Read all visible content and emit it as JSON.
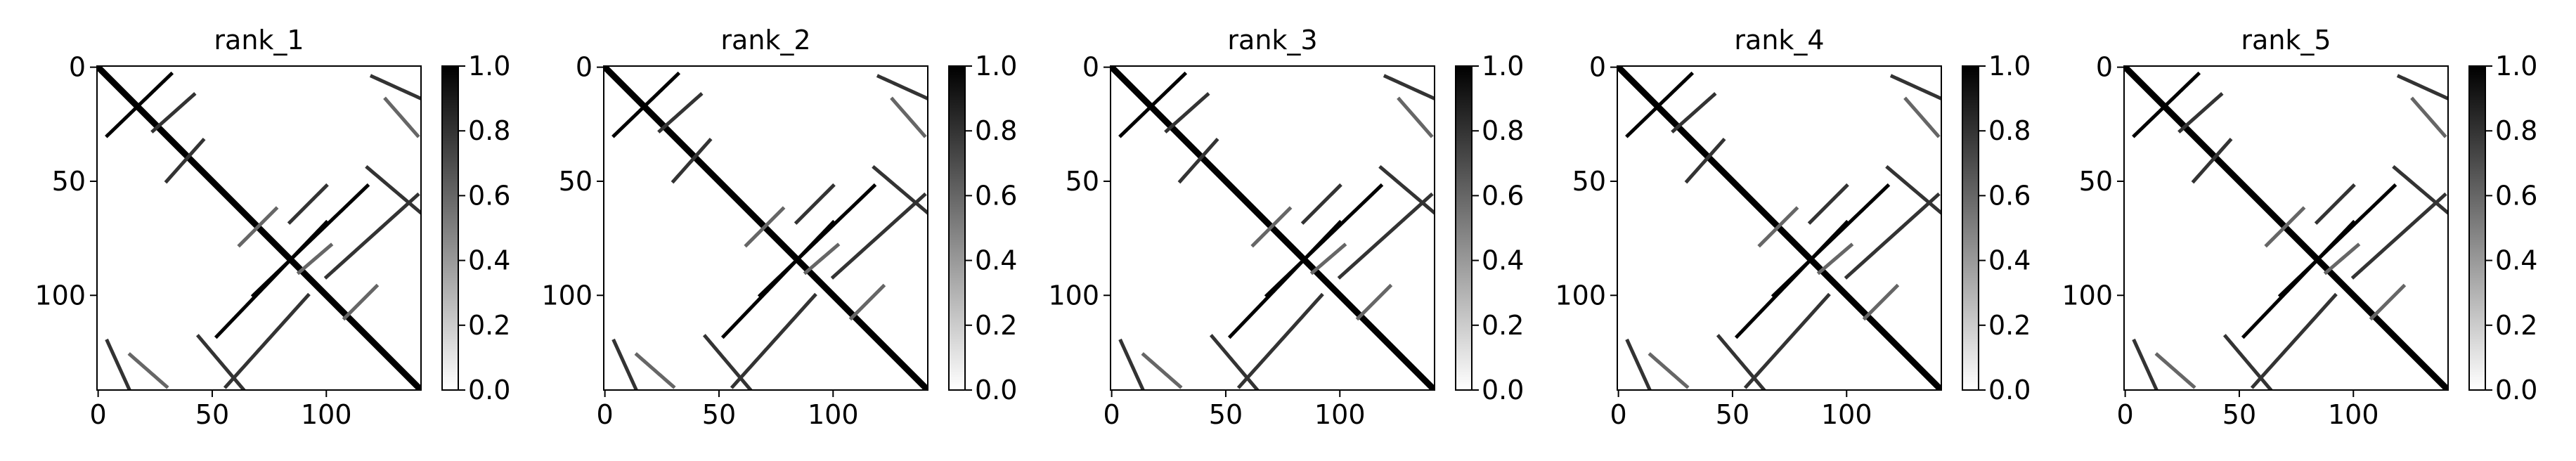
{
  "colors": {
    "background": "#ffffff",
    "axis": "#000000",
    "low": "#ffffff",
    "high": "#000000"
  },
  "chart_data": [
    {
      "type": "heatmap",
      "title": "rank_1",
      "matrix_size": 142,
      "value_range": [
        0.0,
        1.0
      ],
      "colormap": "Greys",
      "x_ticks": [
        0,
        50,
        100
      ],
      "y_ticks": [
        0,
        50,
        100
      ],
      "x_tick_labels": [
        "0",
        "50",
        "100"
      ],
      "y_tick_labels": [
        "0",
        "50",
        "100"
      ],
      "colorbar_ticks": [
        0.0,
        0.2,
        0.4,
        0.6,
        0.8,
        1.0
      ],
      "colorbar_tick_labels": [
        "0.0",
        "0.2",
        "0.4",
        "0.6",
        "0.8",
        "1.0"
      ],
      "contact_segments": [
        {
          "i1": 0,
          "j1": 0,
          "i2": 141,
          "j2": 141,
          "value": 1.0
        },
        {
          "i1": 3,
          "j1": 32,
          "i2": 30,
          "j2": 4,
          "value": 1.0
        },
        {
          "i1": 12,
          "j1": 42,
          "i2": 28,
          "j2": 24,
          "value": 0.8
        },
        {
          "i1": 32,
          "j1": 46,
          "i2": 50,
          "j2": 30,
          "value": 0.8
        },
        {
          "i1": 44,
          "j1": 118,
          "i2": 66,
          "j2": 144,
          "value": 0.8
        },
        {
          "i1": 52,
          "j1": 118,
          "i2": 100,
          "j2": 68,
          "value": 1.0
        },
        {
          "i1": 52,
          "j1": 100,
          "i2": 68,
          "j2": 84,
          "value": 0.8
        },
        {
          "i1": 56,
          "j1": 140,
          "i2": 92,
          "j2": 100,
          "value": 0.8
        },
        {
          "i1": 62,
          "j1": 78,
          "i2": 78,
          "j2": 62,
          "value": 0.6
        },
        {
          "i1": 78,
          "j1": 102,
          "i2": 90,
          "j2": 88,
          "value": 0.6
        },
        {
          "i1": 96,
          "j1": 122,
          "i2": 110,
          "j2": 108,
          "value": 0.6
        },
        {
          "i1": 118,
          "j1": 44,
          "i2": 144,
          "j2": 66,
          "value": 0.8
        },
        {
          "i1": 118,
          "j1": 52,
          "i2": 68,
          "j2": 100,
          "value": 1.0
        },
        {
          "i1": 140,
          "j1": 56,
          "i2": 100,
          "j2": 92,
          "value": 0.8
        },
        {
          "i1": 120,
          "j1": 4,
          "i2": 142,
          "j2": 14,
          "value": 0.8
        },
        {
          "i1": 126,
          "j1": 14,
          "i2": 140,
          "j2": 30,
          "value": 0.6
        },
        {
          "i1": 4,
          "j1": 120,
          "i2": 14,
          "j2": 142,
          "value": 0.8
        },
        {
          "i1": 14,
          "j1": 126,
          "i2": 30,
          "j2": 140,
          "value": 0.6
        }
      ]
    },
    {
      "type": "heatmap",
      "title": "rank_2",
      "matrix_size": 142,
      "value_range": [
        0.0,
        1.0
      ],
      "colormap": "Greys",
      "x_ticks": [
        0,
        50,
        100
      ],
      "y_ticks": [
        0,
        50,
        100
      ],
      "x_tick_labels": [
        "0",
        "50",
        "100"
      ],
      "y_tick_labels": [
        "0",
        "50",
        "100"
      ],
      "colorbar_ticks": [
        0.0,
        0.2,
        0.4,
        0.6,
        0.8,
        1.0
      ],
      "colorbar_tick_labels": [
        "0.0",
        "0.2",
        "0.4",
        "0.6",
        "0.8",
        "1.0"
      ],
      "contact_segments": [
        {
          "i1": 0,
          "j1": 0,
          "i2": 141,
          "j2": 141,
          "value": 1.0
        },
        {
          "i1": 3,
          "j1": 32,
          "i2": 30,
          "j2": 4,
          "value": 1.0
        },
        {
          "i1": 12,
          "j1": 42,
          "i2": 28,
          "j2": 24,
          "value": 0.8
        },
        {
          "i1": 32,
          "j1": 46,
          "i2": 50,
          "j2": 30,
          "value": 0.8
        },
        {
          "i1": 44,
          "j1": 118,
          "i2": 66,
          "j2": 144,
          "value": 0.8
        },
        {
          "i1": 52,
          "j1": 118,
          "i2": 100,
          "j2": 68,
          "value": 1.0
        },
        {
          "i1": 52,
          "j1": 100,
          "i2": 68,
          "j2": 84,
          "value": 0.8
        },
        {
          "i1": 56,
          "j1": 140,
          "i2": 92,
          "j2": 100,
          "value": 0.8
        },
        {
          "i1": 62,
          "j1": 78,
          "i2": 78,
          "j2": 62,
          "value": 0.6
        },
        {
          "i1": 78,
          "j1": 102,
          "i2": 90,
          "j2": 88,
          "value": 0.6
        },
        {
          "i1": 96,
          "j1": 122,
          "i2": 110,
          "j2": 108,
          "value": 0.6
        },
        {
          "i1": 118,
          "j1": 44,
          "i2": 144,
          "j2": 66,
          "value": 0.8
        },
        {
          "i1": 118,
          "j1": 52,
          "i2": 68,
          "j2": 100,
          "value": 1.0
        },
        {
          "i1": 140,
          "j1": 56,
          "i2": 100,
          "j2": 92,
          "value": 0.8
        },
        {
          "i1": 120,
          "j1": 4,
          "i2": 142,
          "j2": 14,
          "value": 0.8
        },
        {
          "i1": 126,
          "j1": 14,
          "i2": 140,
          "j2": 30,
          "value": 0.6
        },
        {
          "i1": 4,
          "j1": 120,
          "i2": 14,
          "j2": 142,
          "value": 0.8
        },
        {
          "i1": 14,
          "j1": 126,
          "i2": 30,
          "j2": 140,
          "value": 0.6
        }
      ]
    },
    {
      "type": "heatmap",
      "title": "rank_3",
      "matrix_size": 142,
      "value_range": [
        0.0,
        1.0
      ],
      "colormap": "Greys",
      "x_ticks": [
        0,
        50,
        100
      ],
      "y_ticks": [
        0,
        50,
        100
      ],
      "x_tick_labels": [
        "0",
        "50",
        "100"
      ],
      "y_tick_labels": [
        "0",
        "50",
        "100"
      ],
      "colorbar_ticks": [
        0.0,
        0.2,
        0.4,
        0.6,
        0.8,
        1.0
      ],
      "colorbar_tick_labels": [
        "0.0",
        "0.2",
        "0.4",
        "0.6",
        "0.8",
        "1.0"
      ],
      "contact_segments": [
        {
          "i1": 0,
          "j1": 0,
          "i2": 141,
          "j2": 141,
          "value": 1.0
        },
        {
          "i1": 3,
          "j1": 32,
          "i2": 30,
          "j2": 4,
          "value": 1.0
        },
        {
          "i1": 12,
          "j1": 42,
          "i2": 28,
          "j2": 24,
          "value": 0.8
        },
        {
          "i1": 32,
          "j1": 46,
          "i2": 50,
          "j2": 30,
          "value": 0.8
        },
        {
          "i1": 44,
          "j1": 118,
          "i2": 66,
          "j2": 144,
          "value": 0.8
        },
        {
          "i1": 52,
          "j1": 118,
          "i2": 100,
          "j2": 68,
          "value": 1.0
        },
        {
          "i1": 52,
          "j1": 100,
          "i2": 68,
          "j2": 84,
          "value": 0.8
        },
        {
          "i1": 56,
          "j1": 140,
          "i2": 92,
          "j2": 100,
          "value": 0.8
        },
        {
          "i1": 62,
          "j1": 78,
          "i2": 78,
          "j2": 62,
          "value": 0.6
        },
        {
          "i1": 78,
          "j1": 102,
          "i2": 90,
          "j2": 88,
          "value": 0.6
        },
        {
          "i1": 96,
          "j1": 122,
          "i2": 110,
          "j2": 108,
          "value": 0.6
        },
        {
          "i1": 118,
          "j1": 44,
          "i2": 144,
          "j2": 66,
          "value": 0.8
        },
        {
          "i1": 118,
          "j1": 52,
          "i2": 68,
          "j2": 100,
          "value": 1.0
        },
        {
          "i1": 140,
          "j1": 56,
          "i2": 100,
          "j2": 92,
          "value": 0.8
        },
        {
          "i1": 120,
          "j1": 4,
          "i2": 142,
          "j2": 14,
          "value": 0.8
        },
        {
          "i1": 126,
          "j1": 14,
          "i2": 140,
          "j2": 30,
          "value": 0.6
        },
        {
          "i1": 4,
          "j1": 120,
          "i2": 14,
          "j2": 142,
          "value": 0.8
        },
        {
          "i1": 14,
          "j1": 126,
          "i2": 30,
          "j2": 140,
          "value": 0.6
        }
      ]
    },
    {
      "type": "heatmap",
      "title": "rank_4",
      "matrix_size": 142,
      "value_range": [
        0.0,
        1.0
      ],
      "colormap": "Greys",
      "x_ticks": [
        0,
        50,
        100
      ],
      "y_ticks": [
        0,
        50,
        100
      ],
      "x_tick_labels": [
        "0",
        "50",
        "100"
      ],
      "y_tick_labels": [
        "0",
        "50",
        "100"
      ],
      "colorbar_ticks": [
        0.0,
        0.2,
        0.4,
        0.6,
        0.8,
        1.0
      ],
      "colorbar_tick_labels": [
        "0.0",
        "0.2",
        "0.4",
        "0.6",
        "0.8",
        "1.0"
      ],
      "contact_segments": [
        {
          "i1": 0,
          "j1": 0,
          "i2": 141,
          "j2": 141,
          "value": 1.0
        },
        {
          "i1": 3,
          "j1": 32,
          "i2": 30,
          "j2": 4,
          "value": 1.0
        },
        {
          "i1": 12,
          "j1": 42,
          "i2": 28,
          "j2": 24,
          "value": 0.8
        },
        {
          "i1": 32,
          "j1": 46,
          "i2": 50,
          "j2": 30,
          "value": 0.8
        },
        {
          "i1": 44,
          "j1": 118,
          "i2": 66,
          "j2": 144,
          "value": 0.8
        },
        {
          "i1": 52,
          "j1": 118,
          "i2": 100,
          "j2": 68,
          "value": 1.0
        },
        {
          "i1": 52,
          "j1": 100,
          "i2": 68,
          "j2": 84,
          "value": 0.8
        },
        {
          "i1": 56,
          "j1": 140,
          "i2": 92,
          "j2": 100,
          "value": 0.8
        },
        {
          "i1": 62,
          "j1": 78,
          "i2": 78,
          "j2": 62,
          "value": 0.6
        },
        {
          "i1": 78,
          "j1": 102,
          "i2": 90,
          "j2": 88,
          "value": 0.6
        },
        {
          "i1": 96,
          "j1": 122,
          "i2": 110,
          "j2": 108,
          "value": 0.6
        },
        {
          "i1": 118,
          "j1": 44,
          "i2": 144,
          "j2": 66,
          "value": 0.8
        },
        {
          "i1": 118,
          "j1": 52,
          "i2": 68,
          "j2": 100,
          "value": 1.0
        },
        {
          "i1": 140,
          "j1": 56,
          "i2": 100,
          "j2": 92,
          "value": 0.8
        },
        {
          "i1": 120,
          "j1": 4,
          "i2": 142,
          "j2": 14,
          "value": 0.8
        },
        {
          "i1": 126,
          "j1": 14,
          "i2": 140,
          "j2": 30,
          "value": 0.6
        },
        {
          "i1": 4,
          "j1": 120,
          "i2": 14,
          "j2": 142,
          "value": 0.8
        },
        {
          "i1": 14,
          "j1": 126,
          "i2": 30,
          "j2": 140,
          "value": 0.6
        }
      ]
    },
    {
      "type": "heatmap",
      "title": "rank_5",
      "matrix_size": 142,
      "value_range": [
        0.0,
        1.0
      ],
      "colormap": "Greys",
      "x_ticks": [
        0,
        50,
        100
      ],
      "y_ticks": [
        0,
        50,
        100
      ],
      "x_tick_labels": [
        "0",
        "50",
        "100"
      ],
      "y_tick_labels": [
        "0",
        "50",
        "100"
      ],
      "colorbar_ticks": [
        0.0,
        0.2,
        0.4,
        0.6,
        0.8,
        1.0
      ],
      "colorbar_tick_labels": [
        "0.0",
        "0.2",
        "0.4",
        "0.6",
        "0.8",
        "1.0"
      ],
      "contact_segments": [
        {
          "i1": 0,
          "j1": 0,
          "i2": 141,
          "j2": 141,
          "value": 1.0
        },
        {
          "i1": 3,
          "j1": 32,
          "i2": 30,
          "j2": 4,
          "value": 1.0
        },
        {
          "i1": 12,
          "j1": 42,
          "i2": 28,
          "j2": 24,
          "value": 0.8
        },
        {
          "i1": 32,
          "j1": 46,
          "i2": 50,
          "j2": 30,
          "value": 0.8
        },
        {
          "i1": 44,
          "j1": 118,
          "i2": 66,
          "j2": 144,
          "value": 0.8
        },
        {
          "i1": 52,
          "j1": 118,
          "i2": 100,
          "j2": 68,
          "value": 1.0
        },
        {
          "i1": 52,
          "j1": 100,
          "i2": 68,
          "j2": 84,
          "value": 0.8
        },
        {
          "i1": 56,
          "j1": 140,
          "i2": 92,
          "j2": 100,
          "value": 0.8
        },
        {
          "i1": 62,
          "j1": 78,
          "i2": 78,
          "j2": 62,
          "value": 0.6
        },
        {
          "i1": 78,
          "j1": 102,
          "i2": 90,
          "j2": 88,
          "value": 0.6
        },
        {
          "i1": 96,
          "j1": 122,
          "i2": 110,
          "j2": 108,
          "value": 0.6
        },
        {
          "i1": 118,
          "j1": 44,
          "i2": 144,
          "j2": 66,
          "value": 0.8
        },
        {
          "i1": 118,
          "j1": 52,
          "i2": 68,
          "j2": 100,
          "value": 1.0
        },
        {
          "i1": 140,
          "j1": 56,
          "i2": 100,
          "j2": 92,
          "value": 0.8
        },
        {
          "i1": 120,
          "j1": 4,
          "i2": 142,
          "j2": 14,
          "value": 0.8
        },
        {
          "i1": 126,
          "j1": 14,
          "i2": 140,
          "j2": 30,
          "value": 0.6
        },
        {
          "i1": 4,
          "j1": 120,
          "i2": 14,
          "j2": 142,
          "value": 0.8
        },
        {
          "i1": 14,
          "j1": 126,
          "i2": 30,
          "j2": 140,
          "value": 0.6
        }
      ]
    }
  ]
}
